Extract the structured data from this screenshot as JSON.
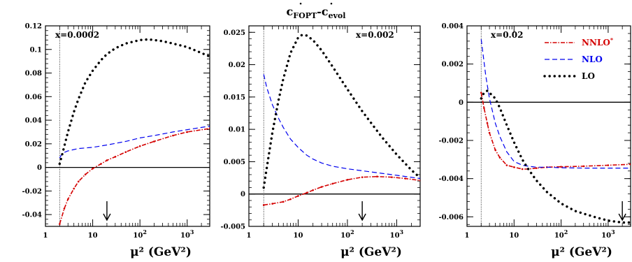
{
  "title": {
    "main1": "c",
    "sub1": "FOPT",
    "dash": "-",
    "main2": "c",
    "sub2": "evol"
  },
  "chart_data": [
    {
      "type": "line",
      "panel_label": "x=0.0002",
      "xlabel": "μ² (GeV²)",
      "xscale": "log",
      "xlim": [
        1,
        3000
      ],
      "ylim": [
        -0.05,
        0.12
      ],
      "yticks": [
        "0.12",
        "0.1",
        "0.08",
        "0.06",
        "0.04",
        "0.02",
        "0",
        "-0.02",
        "-0.04"
      ],
      "ytick_values": [
        0.12,
        0.1,
        0.08,
        0.06,
        0.04,
        0.02,
        0,
        -0.02,
        -0.04
      ],
      "xticks": [
        "1",
        "10",
        "10²",
        "10³"
      ],
      "xtick_values": [
        1,
        10,
        100,
        1000
      ],
      "vline_x": 2,
      "hline_y": 0,
      "arrow_x": 20,
      "series": [
        {
          "name": "NNLO*",
          "color": "#d40000",
          "style": "dashdot",
          "x": [
            2,
            2.5,
            3,
            4,
            5,
            7,
            10,
            15,
            20,
            30,
            50,
            100,
            200,
            500,
            1000,
            3000
          ],
          "y": [
            -0.048,
            -0.035,
            -0.027,
            -0.018,
            -0.012,
            -0.006,
            -0.001,
            0.003,
            0.006,
            0.009,
            0.013,
            0.018,
            0.022,
            0.027,
            0.03,
            0.033
          ]
        },
        {
          "name": "NLO",
          "color": "#0000ee",
          "style": "dashed",
          "x": [
            2,
            2.3,
            3,
            5,
            10,
            20,
            50,
            100,
            200,
            500,
            1000,
            3000
          ],
          "y": [
            0.008,
            0.012,
            0.014,
            0.016,
            0.017,
            0.019,
            0.022,
            0.025,
            0.027,
            0.03,
            0.032,
            0.035
          ]
        },
        {
          "name": "LO",
          "color": "#000000",
          "style": "dotted",
          "x": [
            2,
            2.3,
            3,
            4,
            5,
            7,
            10,
            15,
            20,
            30,
            50,
            100,
            150,
            200,
            300,
            500,
            1000,
            2000,
            3000
          ],
          "y": [
            0.003,
            0.012,
            0.03,
            0.047,
            0.058,
            0.072,
            0.082,
            0.091,
            0.096,
            0.101,
            0.105,
            0.108,
            0.1085,
            0.108,
            0.107,
            0.105,
            0.102,
            0.097,
            0.094
          ]
        }
      ]
    },
    {
      "type": "line",
      "panel_label": "x=0.002",
      "xlabel": "μ² (GeV²)",
      "xscale": "log",
      "xlim": [
        1,
        3000
      ],
      "ylim": [
        -0.005,
        0.026
      ],
      "yticks": [
        "0.025",
        "0.02",
        "0.015",
        "0.01",
        "0.005",
        "0",
        "-0.005"
      ],
      "ytick_values": [
        0.025,
        0.02,
        0.015,
        0.01,
        0.005,
        0,
        -0.005
      ],
      "xticks": [
        "1",
        "10",
        "10²",
        "10³"
      ],
      "xtick_values": [
        1,
        10,
        100,
        1000
      ],
      "vline_x": 2,
      "hline_y": 0,
      "arrow_x": 200,
      "series": [
        {
          "name": "NNLO*",
          "color": "#d40000",
          "style": "dashdot",
          "x": [
            2,
            3,
            5,
            7,
            10,
            15,
            20,
            30,
            50,
            100,
            200,
            400,
            800,
            1500,
            3000
          ],
          "y": [
            -0.0017,
            -0.0015,
            -0.0012,
            -0.0008,
            -0.0003,
            0.0002,
            0.0006,
            0.0011,
            0.0016,
            0.0022,
            0.0026,
            0.0027,
            0.0026,
            0.0024,
            0.0021
          ]
        },
        {
          "name": "NLO",
          "color": "#0000ee",
          "style": "dashed",
          "x": [
            2,
            2.3,
            3,
            4,
            5,
            7,
            10,
            15,
            20,
            30,
            50,
            100,
            200,
            500,
            1000,
            3000
          ],
          "y": [
            0.0185,
            0.0165,
            0.0138,
            0.0117,
            0.0103,
            0.0085,
            0.0072,
            0.006,
            0.0054,
            0.0048,
            0.0043,
            0.0039,
            0.0036,
            0.0032,
            0.0029,
            0.0024
          ]
        },
        {
          "name": "LO",
          "color": "#000000",
          "style": "dotted",
          "x": [
            2,
            2.3,
            3,
            4,
            5,
            7,
            10,
            12,
            15,
            20,
            30,
            50,
            100,
            200,
            500,
            1000,
            2000,
            3000
          ],
          "y": [
            0.001,
            0.004,
            0.0095,
            0.0145,
            0.0178,
            0.0218,
            0.0242,
            0.0246,
            0.0245,
            0.0238,
            0.0222,
            0.0197,
            0.0162,
            0.0128,
            0.0088,
            0.0061,
            0.0037,
            0.0025
          ]
        }
      ]
    },
    {
      "type": "line",
      "panel_label": "x=0.02",
      "xlabel": "μ² (GeV²)",
      "xscale": "log",
      "xlim": [
        1,
        3000
      ],
      "ylim": [
        -0.0065,
        0.004
      ],
      "yticks": [
        "0.004",
        "0.002",
        "0",
        "-0.002",
        "-0.004",
        "-0.006"
      ],
      "ytick_values": [
        0.004,
        0.002,
        0,
        -0.002,
        -0.004,
        -0.006
      ],
      "xticks": [
        "1",
        "10",
        "10²",
        "10³"
      ],
      "xtick_values": [
        1,
        10,
        100,
        1000
      ],
      "vline_x": 2,
      "hline_y": 0,
      "arrow_x": 2000,
      "legend": {
        "position": "top-right",
        "entries": [
          "NNLO*",
          "NLO",
          "LO"
        ]
      },
      "series": [
        {
          "name": "NNLO*",
          "color": "#d40000",
          "style": "dashdot",
          "x": [
            2,
            2.3,
            2.7,
            3,
            4,
            5,
            7,
            10,
            15,
            20,
            30,
            50,
            100,
            300,
            1000,
            3000
          ],
          "y": [
            0.0005,
            -0.0003,
            -0.0011,
            -0.0016,
            -0.0025,
            -0.0029,
            -0.0033,
            -0.0034,
            -0.0035,
            -0.0035,
            -0.00345,
            -0.0034,
            -0.00338,
            -0.00335,
            -0.0033,
            -0.00325
          ]
        },
        {
          "name": "NLO",
          "color": "#0000ee",
          "style": "dashed",
          "x": [
            2,
            2.2,
            2.5,
            3,
            4,
            5,
            7,
            10,
            15,
            20,
            30,
            50,
            100,
            300,
            1000,
            3000
          ],
          "y": [
            0.0033,
            0.0025,
            0.0014,
            0.0002,
            -0.0011,
            -0.0018,
            -0.0026,
            -0.0031,
            -0.0033,
            -0.00335,
            -0.0034,
            -0.0034,
            -0.00343,
            -0.00345,
            -0.00345,
            -0.00345
          ]
        },
        {
          "name": "LO",
          "color": "#000000",
          "style": "dotted",
          "x": [
            2,
            2.3,
            2.7,
            3,
            4,
            5,
            7,
            10,
            15,
            20,
            30,
            50,
            100,
            200,
            500,
            1000,
            2000,
            3000
          ],
          "y": [
            0.0002,
            0.0005,
            0.0006,
            0.0005,
            0.0002,
            -0.0003,
            -0.0012,
            -0.0021,
            -0.003,
            -0.0035,
            -0.0041,
            -0.0047,
            -0.0053,
            -0.0057,
            -0.006,
            -0.0062,
            -0.0063,
            -0.0063
          ]
        }
      ]
    }
  ]
}
